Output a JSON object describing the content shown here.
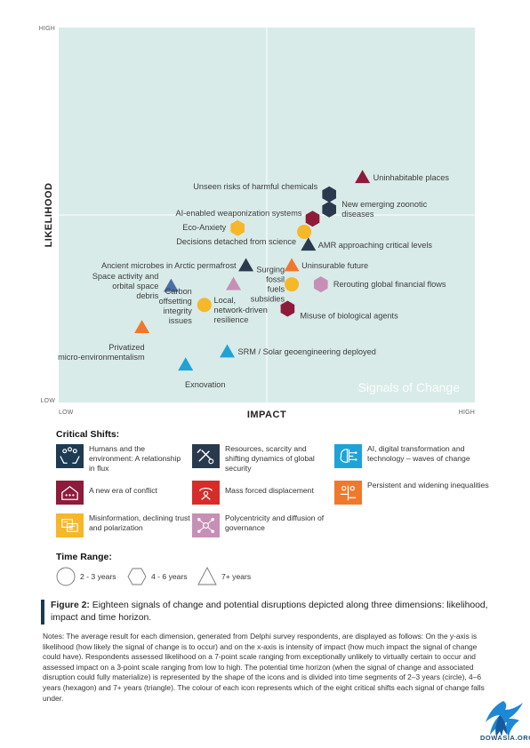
{
  "chart_data": {
    "type": "scatter",
    "xlabel": "IMPACT",
    "ylabel": "LIKELIHOOD",
    "x_range_labels": [
      "LOW",
      "HIGH"
    ],
    "y_range_labels": [
      "LOW",
      "HIGH"
    ],
    "xlim": [
      0,
      1
    ],
    "ylim": [
      0,
      1
    ],
    "watermark": "Signals of Change",
    "points": [
      {
        "label": "Uninhabitable places",
        "x": 0.73,
        "y": 0.6,
        "shape": "triangle",
        "shift": "conflict"
      },
      {
        "label": "Unseen risks of harmful chemicals",
        "x": 0.65,
        "y": 0.555,
        "shape": "hexagon",
        "shift": "resources"
      },
      {
        "label": "New emerging zoonotic diseases",
        "x": 0.65,
        "y": 0.515,
        "shape": "hexagon",
        "shift": "resources"
      },
      {
        "label": "AI-enabled weaponization systems",
        "x": 0.61,
        "y": 0.49,
        "shape": "hexagon",
        "shift": "conflict"
      },
      {
        "label": "Eco-Anxiety",
        "x": 0.43,
        "y": 0.465,
        "shape": "hexagon",
        "shift": "misinformation"
      },
      {
        "label": "Decisions detached from science",
        "x": 0.59,
        "y": 0.455,
        "shape": "circle",
        "shift": "misinformation"
      },
      {
        "label": "AMR approaching critical levels",
        "x": 0.6,
        "y": 0.42,
        "shape": "triangle",
        "shift": "resources"
      },
      {
        "label": "Ancient microbes in Arctic permafrost",
        "x": 0.45,
        "y": 0.365,
        "shape": "triangle",
        "shift": "resources"
      },
      {
        "label": "Uninsurable future",
        "x": 0.56,
        "y": 0.365,
        "shape": "triangle",
        "shift": "inequalities"
      },
      {
        "label": "Space activity and orbital space debris",
        "x": 0.27,
        "y": 0.31,
        "shape": "triangle",
        "shift": "resources_blue"
      },
      {
        "label": "Surging fossil fuels subsidies",
        "x": 0.56,
        "y": 0.315,
        "shape": "circle",
        "shift": "misinformation"
      },
      {
        "label": "Rerouting global financial flows",
        "x": 0.63,
        "y": 0.315,
        "shape": "hexagon",
        "shift": "polycentricity"
      },
      {
        "label": "Local, network-driven resilience",
        "x": 0.42,
        "y": 0.315,
        "shape": "triangle",
        "shift": "polycentricity"
      },
      {
        "label": "Carbon offsetting integrity issues",
        "x": 0.35,
        "y": 0.26,
        "shape": "circle",
        "shift": "misinformation"
      },
      {
        "label": "Misuse of biological agents",
        "x": 0.55,
        "y": 0.25,
        "shape": "hexagon",
        "shift": "conflict"
      },
      {
        "label": "Privatized micro-environmentalism",
        "x": 0.2,
        "y": 0.2,
        "shape": "triangle",
        "shift": "inequalities"
      },
      {
        "label": "SRM / Solar geoengineering deployed",
        "x": 0.405,
        "y": 0.135,
        "shape": "triangle",
        "shift": "ai"
      },
      {
        "label": "Exnovation",
        "x": 0.305,
        "y": 0.1,
        "shape": "triangle",
        "shift": "ai"
      }
    ]
  },
  "colors": {
    "plot_bg": "#d8ebe8",
    "humans": "#1d3b52",
    "resources": "#2a3a4e",
    "resources_blue": "#4a6fa5",
    "ai": "#1fa3d6",
    "conflict": "#8e1b3a",
    "displacement": "#d62d2a",
    "inequalities": "#f0782a",
    "misinformation": "#f6b728",
    "polycentricity": "#c78fb6"
  },
  "legend": {
    "title": "Critical Shifts:",
    "shifts": [
      {
        "key": "humans",
        "label": "Humans and the environment: A relationship in flux",
        "icon": "hands-with-people-icon"
      },
      {
        "key": "resources",
        "label": "Resources, scarcity and shifting dynamics of global security",
        "icon": "tools-icon"
      },
      {
        "key": "ai",
        "label": "AI, digital transformation and technology – waves of change",
        "icon": "brain-circuit-icon"
      },
      {
        "key": "conflict",
        "label": "A new era of conflict",
        "icon": "house-conflict-icon"
      },
      {
        "key": "displacement",
        "label": "Mass forced displacement",
        "icon": "displacement-icon"
      },
      {
        "key": "inequalities",
        "label": "Persistent and widening inequalities",
        "icon": "inequality-icon"
      },
      {
        "key": "misinformation",
        "label": "Misinformation, declining trust and polarization",
        "icon": "screens-icon"
      },
      {
        "key": "polycentricity",
        "label": "Polycentricity and diffusion of governance",
        "icon": "network-icon"
      }
    ]
  },
  "time_range": {
    "title": "Time Range:",
    "items": [
      {
        "shape": "circle",
        "label": "2 - 3 years"
      },
      {
        "shape": "hexagon",
        "label": "4 - 6 years"
      },
      {
        "shape": "triangle",
        "label": "7+ years"
      }
    ]
  },
  "caption": {
    "figure": "Figure 2:",
    "text": " Eighteen signals of change and potential disruptions depicted along three dimensions: likelihood, impact and time horizon."
  },
  "notes": "Notes: The average result for each dimension, generated from Delphi survey respondents, are displayed as follows: On the y-axis is likelihood (how likely the signal of change is to occur) and on the x-axis is intensity of impact (how much impact the signal of change could have). Respondents assessed likelihood on a 7-point scale ranging from exceptionally unlikely to virtually certain to occur and assessed impact on a 3-point scale ranging from low to high. The potential time horizon (when the signal of change and associated disruption could fully materialize) is represented by the shape of the icons and is divided into time segments of 2–3 years (circle), 4–6 years (hexagon) and 7+ years (triangle). The colour of each icon represents which of the eight critical shifts each signal of change falls under.",
  "logo_text": "DOWASIA.ORG"
}
